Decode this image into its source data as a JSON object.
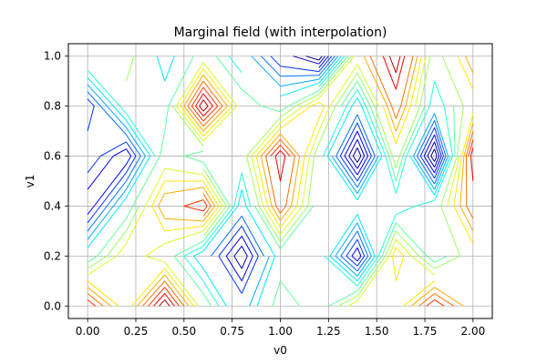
{
  "chart_data": {
    "type": "contour",
    "title": "Marginal field (with interpolation)",
    "xlabel": "v0",
    "ylabel": "v1",
    "xlim": [
      -0.1,
      2.1
    ],
    "ylim": [
      -0.05,
      1.05
    ],
    "x_ticks": [
      "0.00",
      "0.25",
      "0.50",
      "0.75",
      "1.00",
      "1.25",
      "1.50",
      "1.75",
      "2.00"
    ],
    "x_tick_values": [
      0,
      0.25,
      0.5,
      0.75,
      1.0,
      1.25,
      1.5,
      1.75,
      2.0
    ],
    "y_ticks": [
      "0.0",
      "0.2",
      "0.4",
      "0.6",
      "0.8",
      "1.0"
    ],
    "y_tick_values": [
      0,
      0.2,
      0.4,
      0.6,
      0.8,
      1.0
    ],
    "grid": true,
    "colormap": "jet",
    "x": [
      0,
      0.2,
      0.4,
      0.6,
      0.8,
      1.0,
      1.2,
      1.4,
      1.6,
      1.8,
      2.0
    ],
    "y": [
      0,
      0.2,
      0.4,
      0.6,
      0.8,
      1.0
    ],
    "z": [
      [
        0.15,
        0.4,
        0.05,
        0.45,
        0.7,
        0.45,
        0.55,
        0.35,
        0.4,
        0.15,
        0.35
      ],
      [
        0.55,
        0.35,
        0.45,
        0.65,
        0.9,
        0.55,
        0.5,
        0.85,
        0.3,
        0.55,
        0.4
      ],
      [
        0.85,
        0.55,
        0.25,
        0.15,
        0.65,
        0.2,
        0.55,
        0.55,
        0.6,
        0.5,
        0.2
      ],
      [
        0.7,
        0.85,
        0.45,
        0.55,
        0.5,
        0.1,
        0.5,
        0.95,
        0.4,
        0.95,
        0.1
      ],
      [
        0.8,
        0.5,
        0.55,
        0.05,
        0.45,
        0.55,
        0.3,
        0.65,
        0.2,
        0.6,
        0.4
      ],
      [
        0.45,
        0.4,
        0.65,
        0.45,
        0.6,
        0.8,
        0.95,
        0.35,
        0.05,
        0.5,
        0.25
      ]
    ],
    "levels": [
      0.05,
      0.1,
      0.15,
      0.2,
      0.25,
      0.3,
      0.35,
      0.4,
      0.45,
      0.5,
      0.55,
      0.6,
      0.65,
      0.7,
      0.75,
      0.8,
      0.85,
      0.9
    ]
  }
}
